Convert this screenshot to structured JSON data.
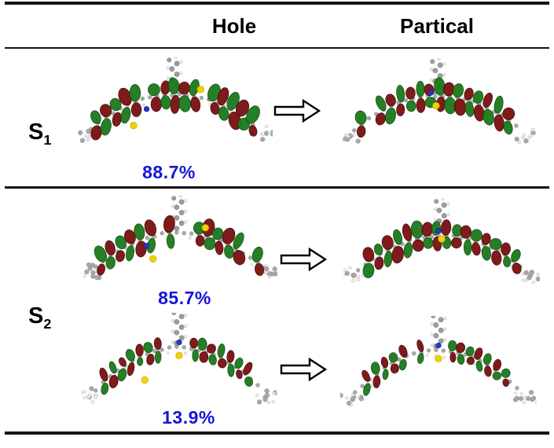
{
  "figure": {
    "header": {
      "hole": "Hole",
      "particle": "Partical"
    },
    "states": [
      {
        "label": "S",
        "subscript": "1"
      },
      {
        "label": "S",
        "subscript": "2"
      }
    ],
    "weights": {
      "s1": "88.7%",
      "s2a": "85.7%",
      "s2b": "13.9%"
    }
  },
  "colors": {
    "weight_text": "#1414dd",
    "orbital_positive": "#1e7a1e",
    "orbital_negative": "#7a1212",
    "carbon": "#a8a8a8",
    "hydrogen": "#ececec",
    "sulfur": "#f0d400",
    "nitrogen": "#2436cc",
    "rule": "#151515"
  }
}
